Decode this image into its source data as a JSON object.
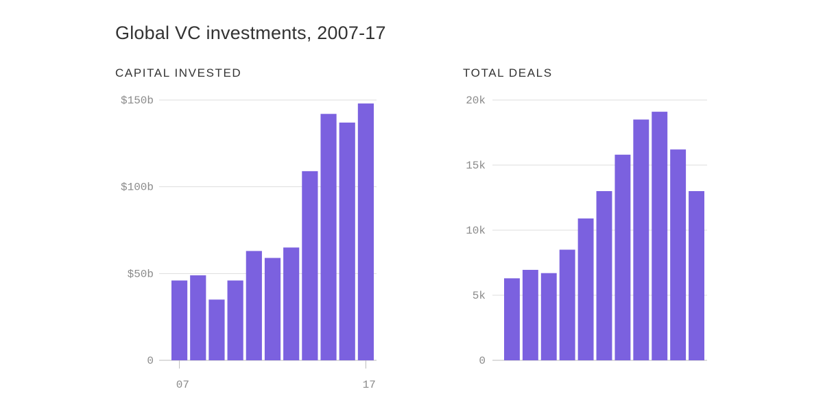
{
  "title": "Global VC investments, 2007-17",
  "colors": {
    "bar": "#7B61DF",
    "grid": "#dddddd",
    "axis": "#bbbbbb",
    "tick_text": "#8a8a8a"
  },
  "chart_data": [
    {
      "type": "bar",
      "title": "CAPITAL INVESTED",
      "categories": [
        "2007",
        "2008",
        "2009",
        "2010",
        "2011",
        "2012",
        "2013",
        "2014",
        "2015",
        "2016",
        "2017"
      ],
      "values": [
        46,
        49,
        35,
        46,
        63,
        59,
        65,
        109,
        142,
        137,
        148
      ],
      "ylim": [
        0,
        150
      ],
      "yticks": [
        0,
        50,
        100,
        150
      ],
      "ytick_labels": [
        "0",
        "$50b",
        "$100b",
        "$150b"
      ],
      "xtick_labels": [
        {
          "index": 0,
          "label": " 07"
        },
        {
          "index": 10,
          "label": " 17"
        }
      ],
      "grid": true
    },
    {
      "type": "bar",
      "title": "TOTAL DEALS",
      "categories": [
        "2007",
        "2008",
        "2009",
        "2010",
        "2011",
        "2012",
        "2013",
        "2014",
        "2015",
        "2016",
        "2017"
      ],
      "values": [
        6300,
        6950,
        6700,
        8500,
        10900,
        13000,
        15800,
        18500,
        19100,
        16200,
        13000
      ],
      "ylim": [
        0,
        20000
      ],
      "yticks": [
        0,
        5000,
        10000,
        15000,
        20000
      ],
      "ytick_labels": [
        "0",
        "5k",
        "10k",
        "15k",
        "20k"
      ],
      "xtick_labels": [],
      "grid": true
    }
  ]
}
